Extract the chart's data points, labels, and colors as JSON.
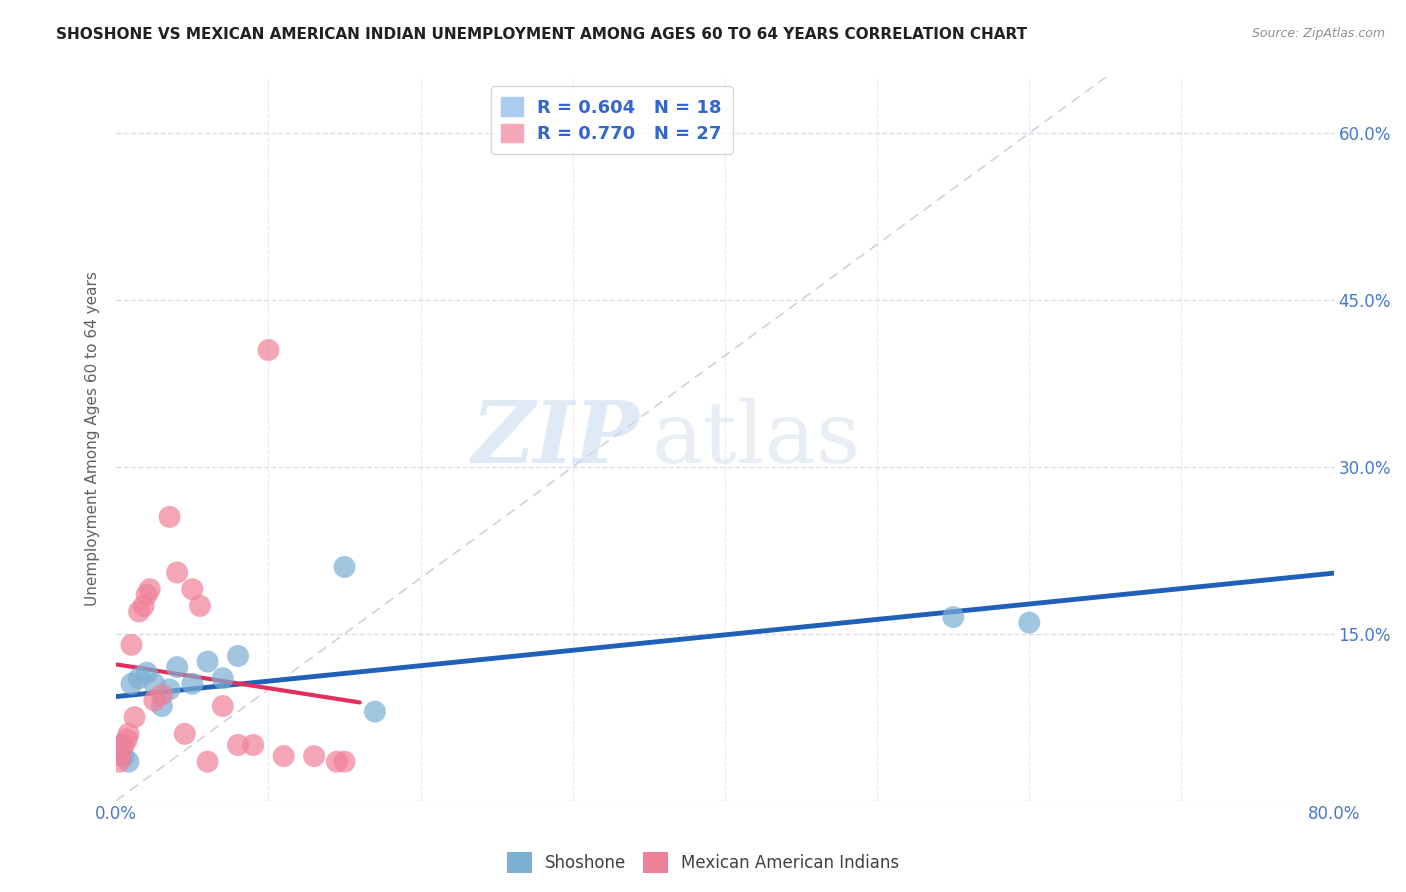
{
  "title": "SHOSHONE VS MEXICAN AMERICAN INDIAN UNEMPLOYMENT AMONG AGES 60 TO 64 YEARS CORRELATION CHART",
  "source": "Source: ZipAtlas.com",
  "xlabel_ticks": [
    0.0,
    10.0,
    20.0,
    30.0,
    40.0,
    50.0,
    60.0,
    70.0,
    80.0
  ],
  "ylabel_ticks": [
    0.0,
    15.0,
    30.0,
    45.0,
    60.0
  ],
  "xlabel_labels": [
    "0.0%",
    "",
    "",
    "",
    "",
    "",
    "",
    "",
    "80.0%"
  ],
  "ylabel_labels": [
    "",
    "15.0%",
    "30.0%",
    "45.0%",
    "60.0%"
  ],
  "ylabel": "Unemployment Among Ages 60 to 64 years",
  "xlim": [
    0,
    80
  ],
  "ylim": [
    0,
    65
  ],
  "watermark_zip": "ZIP",
  "watermark_atlas": "atlas",
  "legend_entries": [
    {
      "label_r": "R = 0.604",
      "label_n": "N = 18",
      "color": "#aaccee"
    },
    {
      "label_r": "R = 0.770",
      "label_n": "N = 27",
      "color": "#f4a8b8"
    }
  ],
  "shoshone_x": [
    0.3,
    0.5,
    0.8,
    1.0,
    1.5,
    2.0,
    2.5,
    3.0,
    4.0,
    5.0,
    6.0,
    7.0,
    8.0,
    15.0,
    17.0,
    55.0,
    60.0,
    3.5
  ],
  "shoshone_y": [
    5.0,
    4.0,
    3.5,
    10.5,
    11.0,
    11.5,
    10.5,
    8.5,
    12.0,
    10.5,
    12.5,
    11.0,
    13.0,
    21.0,
    8.0,
    16.5,
    16.0,
    10.0
  ],
  "mexican_x": [
    0.2,
    0.3,
    0.5,
    0.7,
    0.8,
    1.0,
    1.2,
    1.5,
    1.8,
    2.0,
    2.2,
    2.5,
    3.0,
    3.5,
    4.0,
    4.5,
    5.0,
    5.5,
    6.0,
    7.0,
    8.0,
    9.0,
    10.0,
    11.0,
    13.0,
    14.5,
    15.0
  ],
  "mexican_y": [
    3.5,
    4.0,
    5.0,
    5.5,
    6.0,
    14.0,
    7.5,
    17.0,
    17.5,
    18.5,
    19.0,
    9.0,
    9.5,
    25.5,
    20.5,
    6.0,
    19.0,
    17.5,
    3.5,
    8.5,
    5.0,
    5.0,
    40.5,
    4.0,
    4.0,
    3.5,
    3.5
  ],
  "shoshone_color": "#7bafd4",
  "mexican_color": "#f08098",
  "shoshone_trend_color": "#2060b8",
  "mexican_trend_color": "#e03060",
  "ref_line_color": "#d0c0d8",
  "grid_color": "#d8d8e8",
  "title_color": "#202020",
  "axis_tick_color": "#4878c8",
  "background_color": "#ffffff"
}
